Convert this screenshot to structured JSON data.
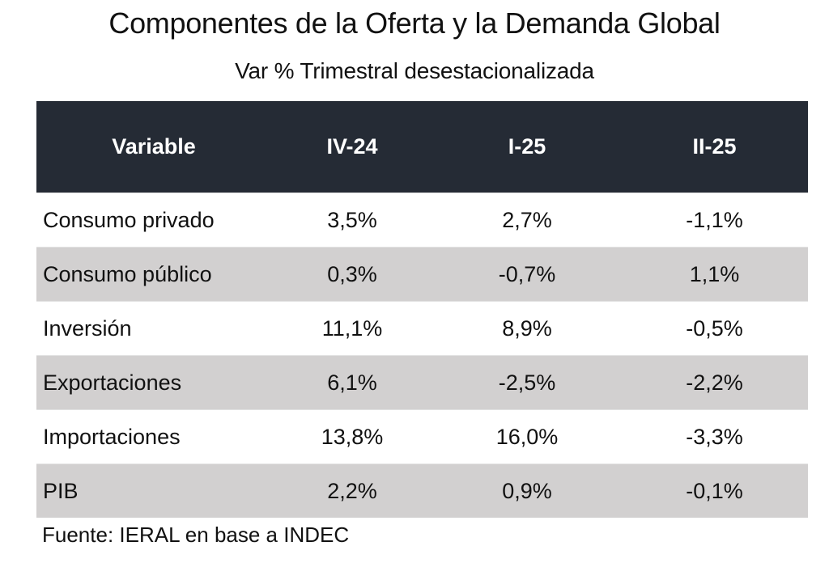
{
  "title": "Componentes de la Oferta y la Demanda Global",
  "subtitle": "Var % Trimestral desestacionalizada",
  "table": {
    "header_color": "#252b35",
    "stripe_color": "#d2d0d0",
    "columns": [
      "Variable",
      "IV-24",
      "I-25",
      "II-25"
    ],
    "rows": [
      {
        "variable": "Consumo privado",
        "values": [
          "3,5%",
          "2,7%",
          "-1,1%"
        ]
      },
      {
        "variable": "Consumo público",
        "values": [
          "0,3%",
          "-0,7%",
          "1,1%"
        ]
      },
      {
        "variable": "Inversión",
        "values": [
          "11,1%",
          "8,9%",
          "-0,5%"
        ]
      },
      {
        "variable": "Exportaciones",
        "values": [
          "6,1%",
          "-2,5%",
          "-2,2%"
        ]
      },
      {
        "variable": "Importaciones",
        "values": [
          "13,8%",
          "16,0%",
          "-3,3%"
        ]
      },
      {
        "variable": "PIB",
        "values": [
          "2,2%",
          "0,9%",
          "-0,1%"
        ]
      }
    ]
  },
  "source": "Fuente: IERAL en base a INDEC"
}
